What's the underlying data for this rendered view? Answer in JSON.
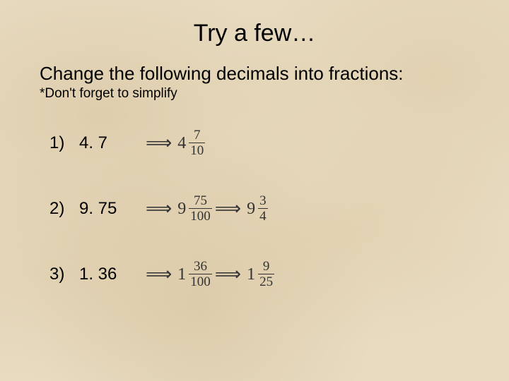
{
  "title": "Try a few…",
  "prompt": "Change the following decimals into fractions:",
  "note": "*Don't forget to simplify",
  "arrow_glyph": "⟹",
  "typography": {
    "body_font": "Comic Sans MS",
    "math_font": "Times New Roman",
    "title_fontsize": 34,
    "prompt_fontsize": 26,
    "note_fontsize": 19,
    "question_fontsize": 24,
    "mixed_whole_fontsize": 24,
    "frac_fontsize": 19,
    "text_color": "#000000",
    "math_color": "#333333"
  },
  "background": {
    "base_color": "#e8dbc0",
    "texture_colors": [
      "#c8af82",
      "#d2b98c",
      "#c3aa7d",
      "#cdb487"
    ]
  },
  "problems": [
    {
      "number": "1)",
      "decimal": "4. 7",
      "steps": [
        {
          "whole": "4",
          "numerator": "7",
          "denominator": "10"
        }
      ]
    },
    {
      "number": "2)",
      "decimal": "9. 75",
      "steps": [
        {
          "whole": "9",
          "numerator": "75",
          "denominator": "100"
        },
        {
          "whole": "9",
          "numerator": "3",
          "denominator": "4"
        }
      ]
    },
    {
      "number": "3)",
      "decimal": "1. 36",
      "steps": [
        {
          "whole": "1",
          "numerator": "36",
          "denominator": "100"
        },
        {
          "whole": "1",
          "numerator": "9",
          "denominator": "25"
        }
      ]
    }
  ]
}
